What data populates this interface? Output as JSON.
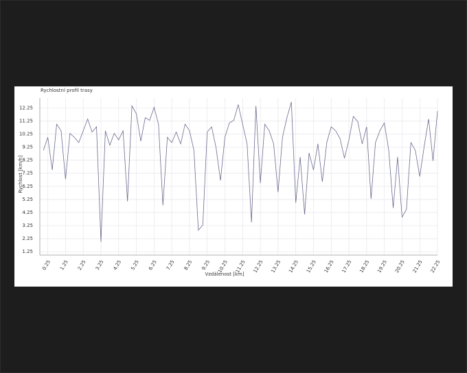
{
  "chart_data": {
    "type": "line",
    "title": "Rychlostní profil trasy",
    "x_label": "Vzdálenost [km]",
    "y_label": "Rychlost [km/h]",
    "x": [
      0,
      0.25,
      0.5,
      0.75,
      1,
      1.25,
      1.5,
      1.75,
      2,
      2.25,
      2.5,
      2.75,
      3,
      3.25,
      3.5,
      3.75,
      4,
      4.25,
      4.5,
      4.75,
      5,
      5.25,
      5.5,
      5.75,
      6,
      6.25,
      6.5,
      6.75,
      7,
      7.25,
      7.5,
      7.75,
      8,
      8.25,
      8.5,
      8.75,
      9,
      9.25,
      9.5,
      9.75,
      10,
      10.25,
      10.5,
      10.75,
      11,
      11.25,
      11.5,
      11.75,
      12,
      12.25,
      12.5,
      12.75,
      13,
      13.25,
      13.5,
      13.75,
      14,
      14.25,
      14.5,
      14.75,
      15,
      15.25,
      15.5,
      15.75,
      16,
      16.25,
      16.5,
      16.75,
      17,
      17.25,
      17.5,
      17.75,
      18,
      18.25,
      18.5,
      18.75,
      19,
      19.25,
      19.5,
      19.75,
      20,
      20.25,
      20.5,
      20.75,
      21,
      21.25,
      21.5,
      21.75,
      22,
      22.25
    ],
    "values": [
      9.0,
      10.0,
      7.5,
      11.0,
      10.5,
      6.8,
      10.3,
      10.0,
      9.6,
      10.5,
      11.4,
      10.4,
      10.8,
      2.0,
      10.5,
      9.4,
      10.3,
      9.8,
      10.5,
      5.1,
      12.4,
      11.8,
      9.7,
      11.5,
      11.3,
      12.3,
      11.0,
      4.8,
      10.0,
      9.6,
      10.4,
      9.5,
      11.0,
      10.5,
      9.0,
      2.9,
      3.3,
      10.4,
      10.8,
      9.2,
      6.7,
      10.0,
      11.1,
      11.3,
      12.5,
      11.0,
      9.5,
      3.5,
      12.4,
      6.5,
      11.0,
      10.5,
      9.5,
      5.8,
      10.0,
      11.5,
      12.7,
      5.0,
      8.5,
      4.1,
      8.8,
      7.5,
      9.5,
      6.6,
      9.6,
      10.8,
      10.5,
      9.9,
      8.4,
      9.8,
      11.6,
      11.2,
      9.5,
      10.8,
      5.3,
      9.6,
      10.5,
      11.1,
      9.0,
      4.6,
      8.5,
      3.9,
      4.5,
      9.6,
      9.0,
      7.0,
      9.3,
      11.4,
      8.2,
      12.0
    ],
    "color": "#6a6a8e",
    "xlim": [
      -0.2,
      22.25
    ],
    "ylim": [
      1,
      13
    ],
    "xticks": [
      0.25,
      1.25,
      2.25,
      3.25,
      4.25,
      5.25,
      6.25,
      7.25,
      8.25,
      9.25,
      10.25,
      11.25,
      12.25,
      13.25,
      14.25,
      15.25,
      16.25,
      17.25,
      18.25,
      19.25,
      20.25,
      21.25,
      22.25
    ],
    "yticks": [
      1.25,
      2.25,
      3.25,
      4.25,
      5.25,
      6.25,
      7.25,
      8.25,
      9.25,
      10.25,
      11.25,
      12.25
    ],
    "grid": true
  }
}
